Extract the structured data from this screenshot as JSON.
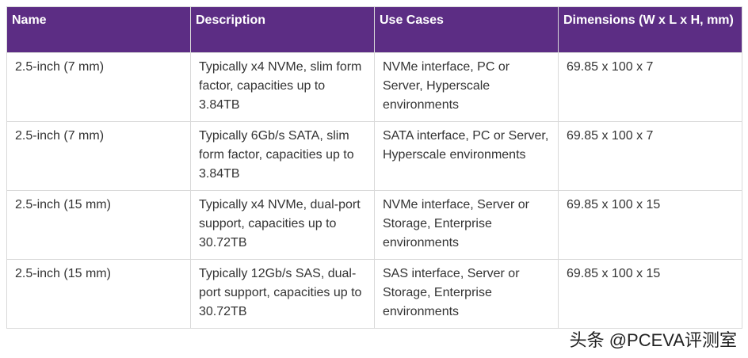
{
  "table": {
    "header": [
      "Name",
      "Description",
      "Use Cases",
      "Dimensions (W x L x H, mm)"
    ],
    "rows": [
      [
        "2.5-inch (7 mm)",
        "Typically x4 NVMe, slim form factor, capacities up to 3.84TB",
        "NVMe interface, PC or Server, Hyperscale environments",
        "69.85 x 100 x 7"
      ],
      [
        "2.5-inch (7 mm)",
        "Typically 6Gb/s SATA, slim form factor, capacities up to 3.84TB",
        "SATA interface, PC or Server, Hyperscale environments",
        "69.85 x 100 x 7"
      ],
      [
        "2.5-inch (15 mm)",
        "Typically x4 NVMe, dual-port support, capacities up to 30.72TB",
        "NVMe interface, Server or Storage, Enterprise environments",
        "69.85 x 100 x 15"
      ],
      [
        "2.5-inch (15 mm)",
        "Typically 12Gb/s SAS, dual-port support, capacities up to 30.72TB",
        "SAS interface, Server or Storage, Enterprise environments",
        "69.85 x 100 x 15"
      ]
    ]
  },
  "watermark": "头条 @PCEVA评测室"
}
